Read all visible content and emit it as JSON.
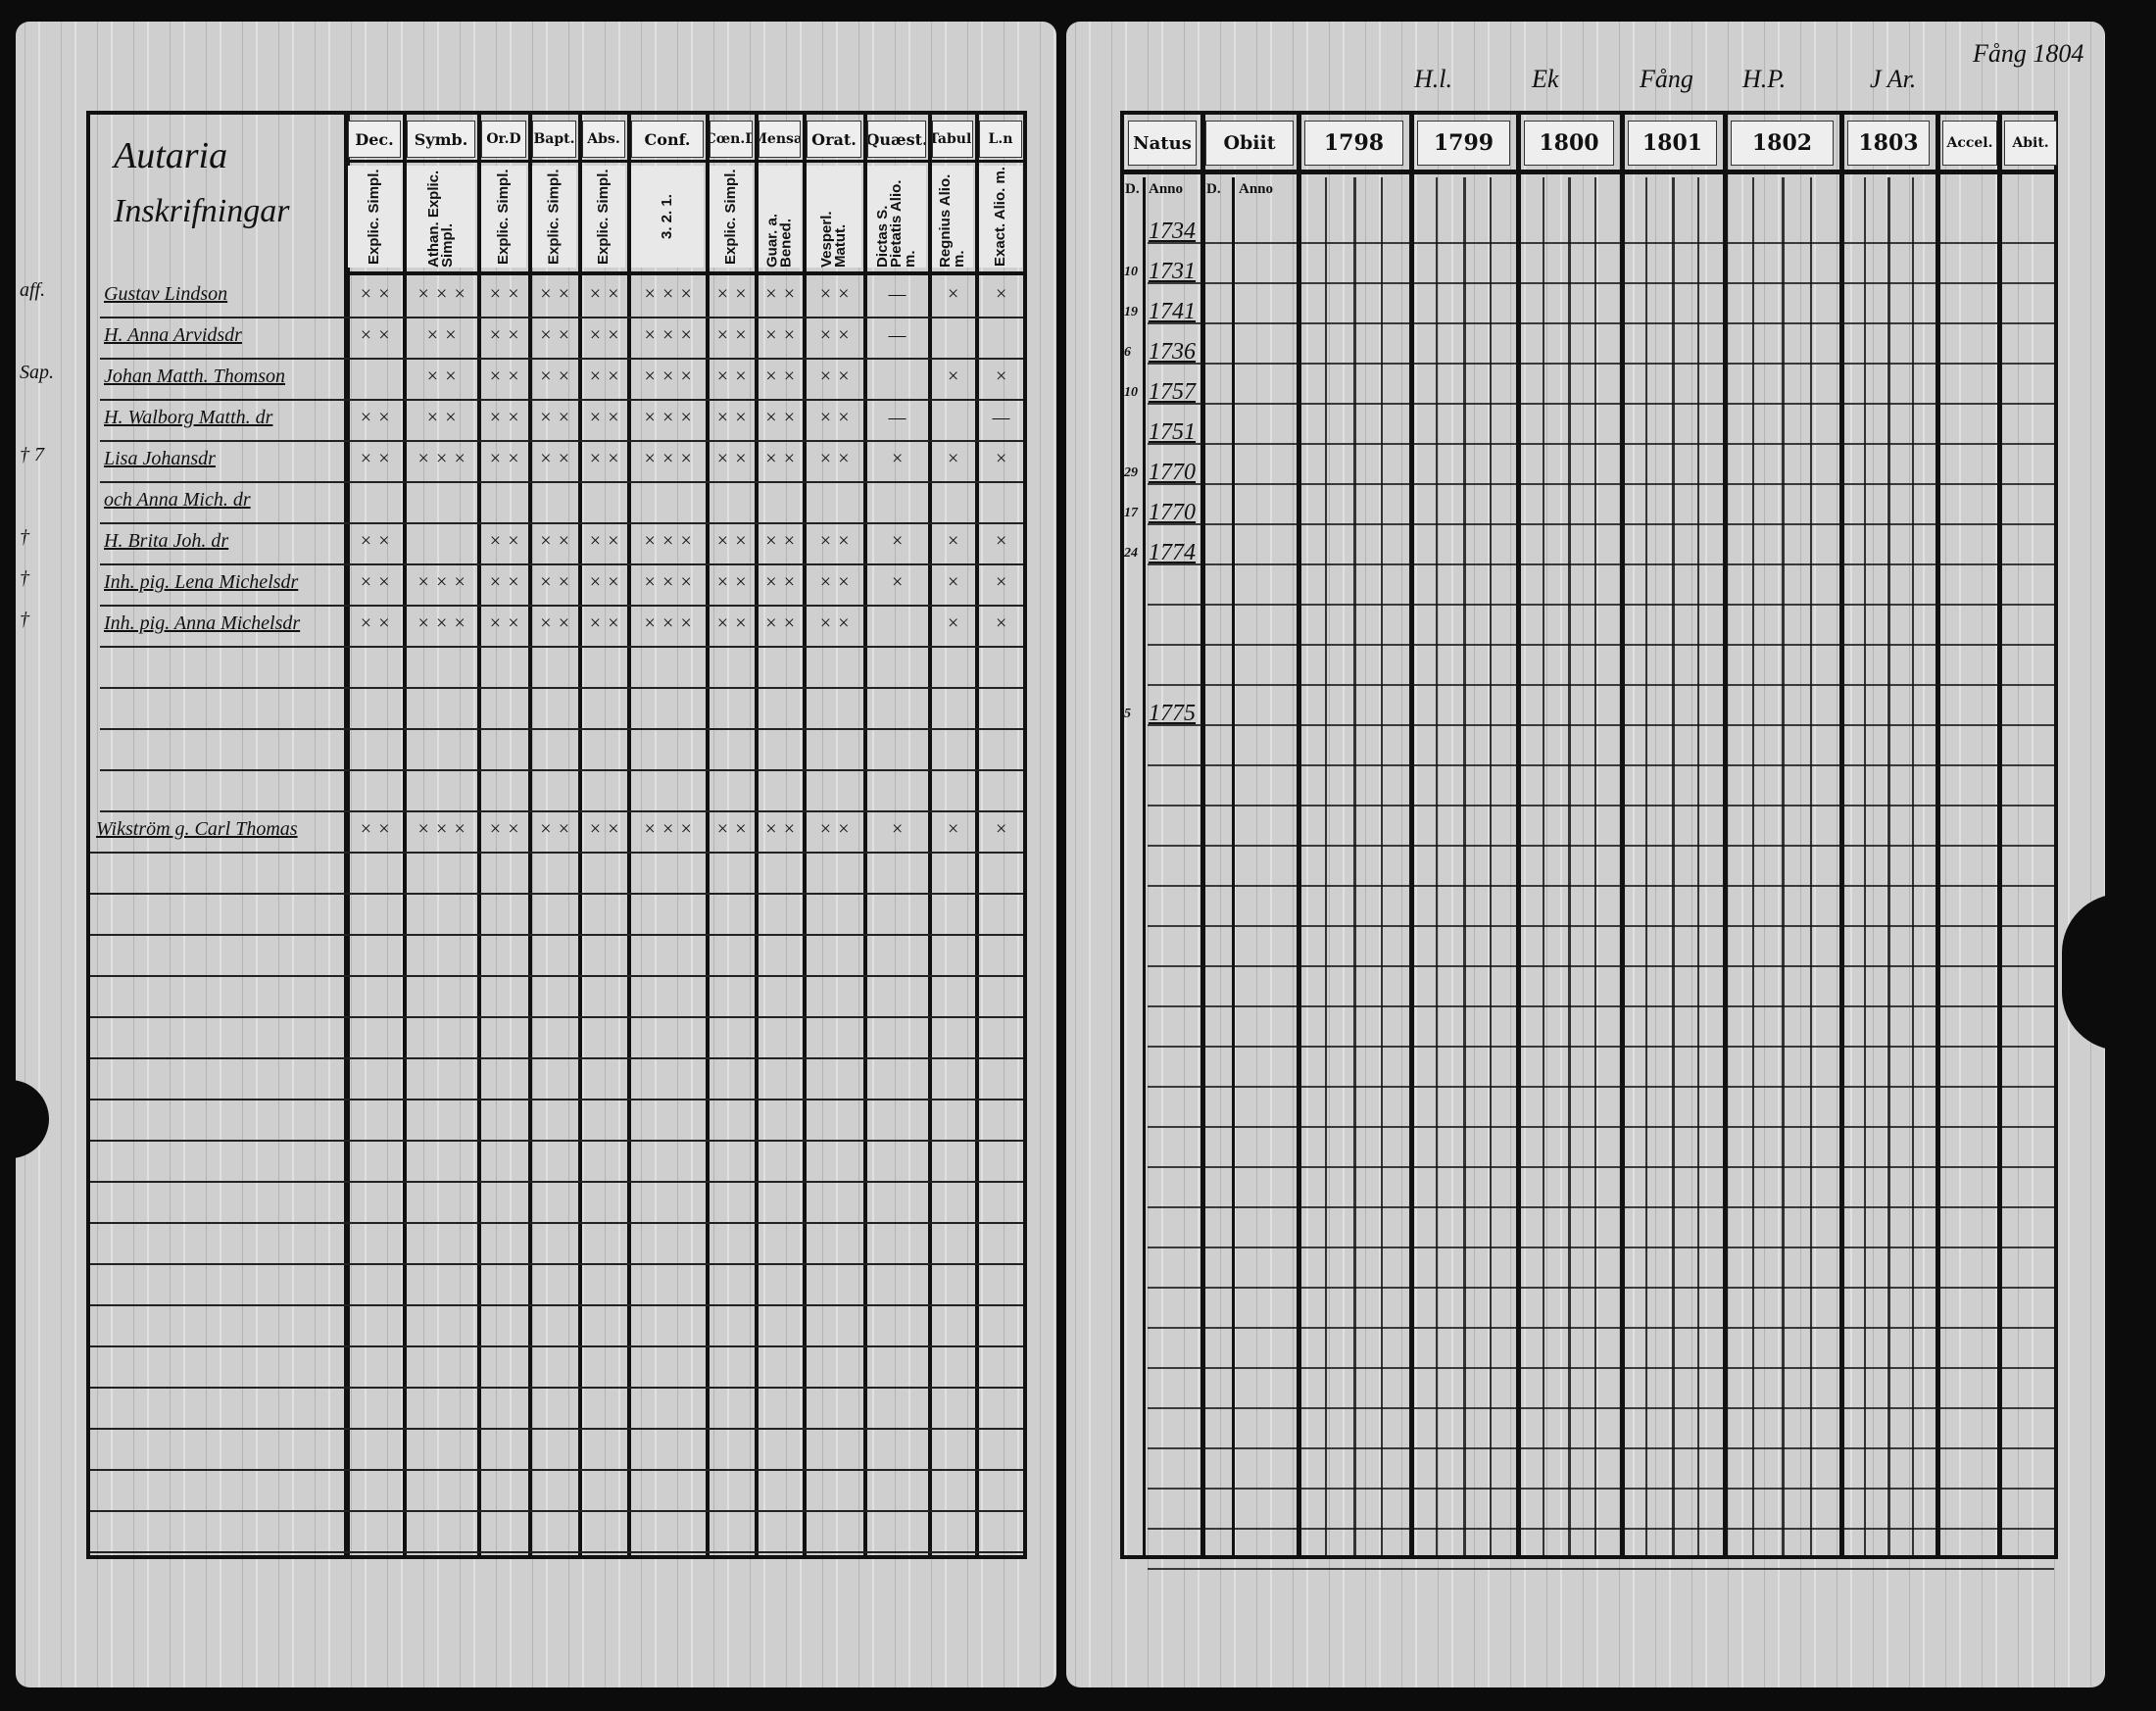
{
  "left_page": {
    "title_line1": "Autaria",
    "title_line2": "Inskrifningar",
    "columns": [
      {
        "header": "Dec.",
        "sub": "Explic. Simpl."
      },
      {
        "header": "Symb.",
        "sub": "Athan. Explic. Simpl."
      },
      {
        "header": "Or.D",
        "sub": "Explic. Simpl."
      },
      {
        "header": "Bapt.",
        "sub": "Explic. Simpl."
      },
      {
        "header": "Abs.",
        "sub": "Explic. Simpl."
      },
      {
        "header": "Conf.",
        "sub": "3. 2. 1."
      },
      {
        "header": "Cœn.D",
        "sub": "Explic. Simpl."
      },
      {
        "header": "Mensæ",
        "sub": "Guar. a. Bened."
      },
      {
        "header": "Orat.",
        "sub": "Vesperl. Matut."
      },
      {
        "header": "Quæst.",
        "sub": "Dictas S. Pietatis Alio. m."
      },
      {
        "header": "Tabul.",
        "sub": "Regnius Alio. m."
      },
      {
        "header": "L.n",
        "sub": "Exact. Alio. m."
      }
    ],
    "rows": [
      {
        "prefix": "aff.",
        "name": "Gustav Lindson",
        "marks": [
          "× ×",
          "× × ×",
          "× ×",
          "× ×",
          "× ×",
          "× × ×",
          "× ×",
          "× ×",
          "× ×",
          "—",
          "×",
          "×"
        ]
      },
      {
        "prefix": "",
        "name": "H. Anna Arvidsdr",
        "marks": [
          "× ×",
          "× ×",
          "× ×",
          "× ×",
          "× ×",
          "× × ×",
          "× ×",
          "× ×",
          "× ×",
          "—",
          "",
          ""
        ]
      },
      {
        "prefix": "Sap.",
        "name": "Johan Matth. Thomson",
        "marks": [
          "",
          "× ×",
          "× ×",
          "× ×",
          "× ×",
          "× × ×",
          "× ×",
          "× ×",
          "× ×",
          "",
          "×",
          "×"
        ]
      },
      {
        "prefix": "",
        "name": "H. Walborg Matth. dr",
        "marks": [
          "× ×",
          "× ×",
          "× ×",
          "× ×",
          "× ×",
          "× × ×",
          "× ×",
          "× ×",
          "× ×",
          "—",
          "",
          "—"
        ]
      },
      {
        "prefix": "† 7",
        "name": "Lisa Johansdr",
        "marks": [
          "× ×",
          "× × ×",
          "× ×",
          "× ×",
          "× ×",
          "× × ×",
          "× ×",
          "× ×",
          "× ×",
          "×",
          "×",
          "×"
        ]
      },
      {
        "prefix": "",
        "name": "och Anna Mich. dr",
        "marks": [
          "",
          "",
          "",
          "",
          "",
          "",
          "",
          "",
          "",
          "",
          "",
          ""
        ]
      },
      {
        "prefix": "†",
        "name": "H. Brita Joh. dr",
        "marks": [
          "× ×",
          "",
          "× ×",
          "× ×",
          "× ×",
          "× × ×",
          "× ×",
          "× ×",
          "× ×",
          "×",
          "×",
          "×"
        ]
      },
      {
        "prefix": "†",
        "name": "Inh. pig. Lena Michelsdr",
        "marks": [
          "× ×",
          "× × ×",
          "× ×",
          "× ×",
          "× ×",
          "× × ×",
          "× ×",
          "× ×",
          "× ×",
          "×",
          "×",
          "×"
        ]
      },
      {
        "prefix": "†",
        "name": "Inh. pig. Anna Michelsdr",
        "marks": [
          "× ×",
          "× × ×",
          "× ×",
          "× ×",
          "× ×",
          "× × ×",
          "× ×",
          "× ×",
          "× ×",
          "",
          "×",
          "×"
        ]
      },
      {
        "prefix": "",
        "name": "Wikström g. Carl Thomas",
        "marks": [
          "× ×",
          "× × ×",
          "× ×",
          "× ×",
          "× ×",
          "× × ×",
          "× ×",
          "× ×",
          "× ×",
          "×",
          "×",
          "×"
        ]
      }
    ]
  },
  "right_page": {
    "annotations": [
      "H.l.",
      "Ek",
      "Fång",
      "H.P.",
      "J Ar.",
      "Fång 1804"
    ],
    "headers": {
      "natus": "Natus",
      "obiit": "Obiit",
      "accel": "Accel.",
      "abit": "Abit."
    },
    "sub_headers": {
      "day": "D.",
      "year": "Anno"
    },
    "years": [
      "1798",
      "1799",
      "1800",
      "1801",
      "1802",
      "1803"
    ],
    "births": [
      {
        "day": "",
        "year": "1734"
      },
      {
        "day": "10",
        "year": "1731"
      },
      {
        "day": "19",
        "year": "1741"
      },
      {
        "day": "6",
        "year": "1736"
      },
      {
        "day": "10",
        "year": "1757"
      },
      {
        "day": "",
        "year": "1751"
      },
      {
        "day": "29",
        "year": "1770"
      },
      {
        "day": "17",
        "year": "1770"
      },
      {
        "day": "24",
        "year": "1774"
      },
      {
        "day": "5",
        "year": "1775"
      }
    ]
  }
}
